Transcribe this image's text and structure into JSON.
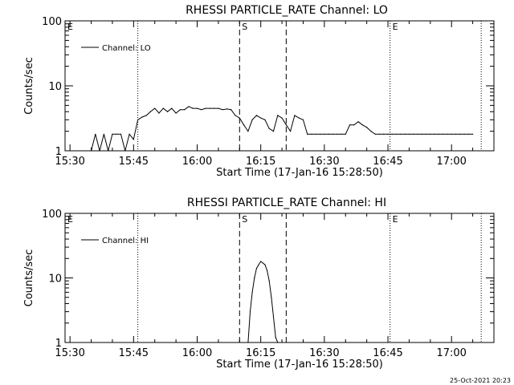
{
  "chart_data": [
    {
      "type": "line",
      "title": "RHESSI PARTICLE_RATE Channel: LO",
      "xlabel": "Start Time (17-Jan-16 15:28:50)",
      "ylabel": "Counts/sec",
      "yscale": "log",
      "ylim": [
        1,
        100
      ],
      "xlim": [
        "15:28:50",
        "17:10:00"
      ],
      "xticks": [
        "15:30",
        "15:45",
        "16:00",
        "16:15",
        "16:30",
        "16:45",
        "17:00"
      ],
      "yticks": [
        "1",
        "10",
        "100"
      ],
      "markers": [
        {
          "label": "E",
          "time": "15:28:50",
          "style": "dotted"
        },
        {
          "label": "",
          "time": "15:46:00",
          "style": "dotted"
        },
        {
          "label": "S",
          "time": "16:10:00",
          "style": "dashed"
        },
        {
          "label": "",
          "time": "16:21:00",
          "style": "dashed"
        },
        {
          "label": "E",
          "time": "16:45:30",
          "style": "dotted"
        },
        {
          "label": "",
          "time": "17:07:00",
          "style": "dotted"
        }
      ],
      "legend": {
        "position": "top-left",
        "entries": [
          "Channel: LO"
        ]
      },
      "series": [
        {
          "name": "Channel: LO",
          "x": [
            "15:35:00",
            "15:36:00",
            "15:37:00",
            "15:38:00",
            "15:39:00",
            "15:40:00",
            "15:41:00",
            "15:42:00",
            "15:43:00",
            "15:44:00",
            "15:45:00",
            "15:46:00",
            "15:47:00",
            "15:48:00",
            "15:49:00",
            "15:50:00",
            "15:51:00",
            "15:52:00",
            "15:53:00",
            "15:54:00",
            "15:55:00",
            "15:56:00",
            "15:57:00",
            "15:58:00",
            "15:59:00",
            "16:00:00",
            "16:01:00",
            "16:02:00",
            "16:03:00",
            "16:04:00",
            "16:05:00",
            "16:06:00",
            "16:07:00",
            "16:08:00",
            "16:09:00",
            "16:10:00",
            "16:11:00",
            "16:12:00",
            "16:13:00",
            "16:14:00",
            "16:15:00",
            "16:16:00",
            "16:17:00",
            "16:18:00",
            "16:19:00",
            "16:20:00",
            "16:21:00",
            "16:22:00",
            "16:23:00",
            "16:24:00",
            "16:25:00",
            "16:26:00",
            "16:27:00",
            "16:28:00",
            "16:29:00",
            "16:30:00",
            "16:31:00",
            "16:32:00",
            "16:33:00",
            "16:34:00",
            "16:35:00",
            "16:36:00",
            "16:37:00",
            "16:38:00",
            "16:39:00",
            "16:40:00",
            "16:41:00",
            "16:42:00",
            "16:43:00",
            "16:44:00",
            "16:45:00",
            "16:46:00",
            "16:47:00",
            "16:48:00",
            "16:49:00",
            "16:50:00",
            "16:51:00",
            "16:52:00",
            "16:53:00",
            "16:54:00",
            "16:55:00",
            "16:56:00",
            "16:57:00",
            "16:58:00",
            "16:59:00",
            "17:00:00",
            "17:01:00",
            "17:02:00",
            "17:03:00",
            "17:04:00",
            "17:05:00"
          ],
          "y": [
            1,
            1.8,
            1,
            1.8,
            1,
            1.8,
            1.8,
            1.8,
            1,
            1.8,
            1.5,
            3,
            3.3,
            3.5,
            4,
            4.5,
            3.8,
            4.5,
            4,
            4.5,
            3.8,
            4.3,
            4.3,
            4.8,
            4.5,
            4.5,
            4.3,
            4.5,
            4.5,
            4.5,
            4.5,
            4.3,
            4.4,
            4.3,
            3.5,
            3.2,
            2.5,
            2,
            3,
            3.5,
            3.2,
            3,
            2.2,
            2,
            3.5,
            3.2,
            2.5,
            2,
            3.5,
            3.2,
            3,
            1.8,
            1.8,
            1.8,
            1.8,
            1.8,
            1.8,
            1.8,
            1.8,
            1.8,
            1.8,
            2.5,
            2.5,
            2.8,
            2.5,
            2.3,
            2,
            1.8,
            1.8,
            1.8,
            1.8,
            1.8,
            1.8,
            1.8,
            1.8,
            1.8,
            1.8,
            1.8,
            1.8,
            1.8,
            1.8,
            1.8,
            1.8,
            1.8,
            1.8,
            1.8,
            1.8,
            1.8,
            1.8,
            1.8,
            1.8
          ]
        }
      ]
    },
    {
      "type": "line",
      "title": "RHESSI PARTICLE_RATE Channel: HI",
      "xlabel": "Start Time (17-Jan-16 15:28:50)",
      "ylabel": "Counts/sec",
      "yscale": "log",
      "ylim": [
        1,
        100
      ],
      "xlim": [
        "15:28:50",
        "17:10:00"
      ],
      "xticks": [
        "15:30",
        "15:45",
        "16:00",
        "16:15",
        "16:30",
        "16:45",
        "17:00"
      ],
      "yticks": [
        "1",
        "10",
        "100"
      ],
      "markers": [
        {
          "label": "E",
          "time": "15:28:50",
          "style": "dotted"
        },
        {
          "label": "",
          "time": "15:46:00",
          "style": "dotted"
        },
        {
          "label": "S",
          "time": "16:10:00",
          "style": "dashed"
        },
        {
          "label": "",
          "time": "16:21:00",
          "style": "dashed"
        },
        {
          "label": "E",
          "time": "16:45:30",
          "style": "dotted"
        },
        {
          "label": "",
          "time": "17:07:00",
          "style": "dotted"
        }
      ],
      "legend": {
        "position": "top-left",
        "entries": [
          "Channel: HI"
        ]
      },
      "series": [
        {
          "name": "Channel: HI",
          "x": [
            "16:12:00",
            "16:12:30",
            "16:13:00",
            "16:13:30",
            "16:14:00",
            "16:14:30",
            "16:15:00",
            "16:15:30",
            "16:16:00",
            "16:16:30",
            "16:17:00",
            "16:17:30",
            "16:18:00",
            "16:18:30",
            "16:19:00"
          ],
          "y": [
            1,
            3,
            6,
            10,
            14,
            16,
            18,
            17,
            16,
            13,
            9,
            5,
            2.5,
            1.2,
            1
          ]
        }
      ]
    }
  ],
  "timestamp": "25-Oct-2021 20:23"
}
